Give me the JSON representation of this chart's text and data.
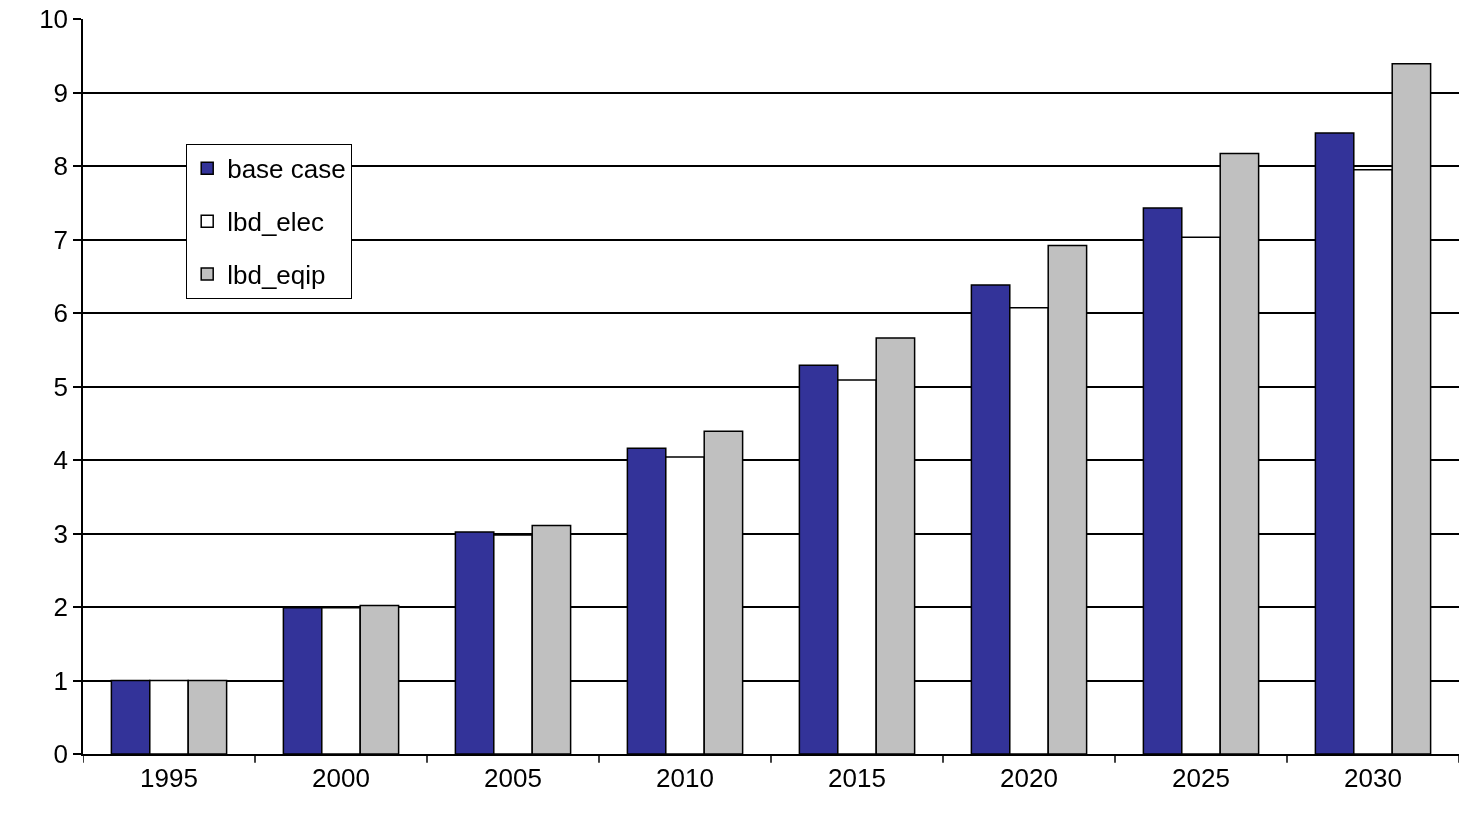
{
  "chart_data": {
    "type": "bar",
    "categories": [
      "1995",
      "2000",
      "2005",
      "2010",
      "2015",
      "2020",
      "2025",
      "2030"
    ],
    "series": [
      {
        "name": "base case",
        "color": "#333399",
        "values": [
          1.0,
          1.99,
          3.02,
          4.16,
          5.29,
          6.38,
          7.43,
          8.45
        ]
      },
      {
        "name": "lbd_elec",
        "color": "#ffffff",
        "values": [
          1.0,
          1.99,
          2.98,
          4.04,
          5.09,
          6.07,
          7.03,
          7.95
        ]
      },
      {
        "name": "lbd_eqip",
        "color": "#c0c0c0",
        "values": [
          1.0,
          2.02,
          3.11,
          4.39,
          5.66,
          6.92,
          8.17,
          9.39
        ]
      }
    ],
    "ylim": [
      0,
      10
    ],
    "yticks": [
      0,
      1,
      2,
      3,
      4,
      5,
      6,
      7,
      8,
      9,
      10
    ],
    "grid": "y",
    "legend": "top left"
  }
}
